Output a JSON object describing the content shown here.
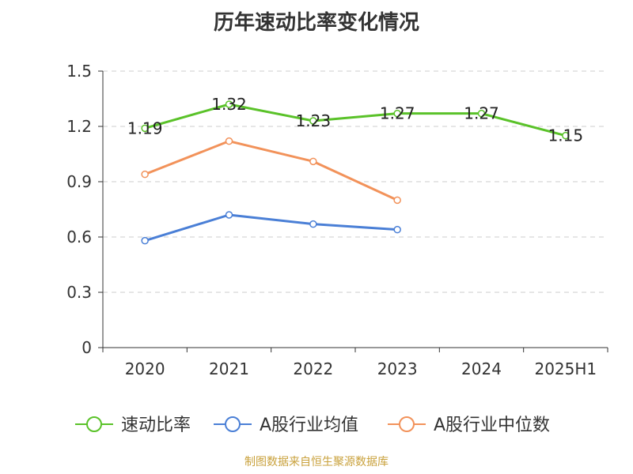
{
  "title": "历年速动比率变化情况",
  "footer": "制图数据来自恒生聚源数据库",
  "chart_data": {
    "type": "line",
    "categories": [
      "2020",
      "2021",
      "2022",
      "2023",
      "2024",
      "2025H1"
    ],
    "ylim": [
      0,
      1.5
    ],
    "yticks": [
      "0",
      "0.3",
      "0.6",
      "0.9",
      "1.2",
      "1.5"
    ],
    "grid": true,
    "legend_position": "bottom",
    "series": [
      {
        "name": "速动比率",
        "color": "#5ac229",
        "values": [
          1.19,
          1.32,
          1.23,
          1.27,
          1.27,
          1.15
        ],
        "labels": [
          "1.19",
          "1.32",
          "1.23",
          "1.27",
          "1.27",
          "1.15"
        ]
      },
      {
        "name": "A股行业均值",
        "color": "#4a7fd6",
        "values": [
          0.58,
          0.72,
          0.67,
          0.64,
          null,
          null
        ]
      },
      {
        "name": "A股行业中位数",
        "color": "#f2925a",
        "values": [
          0.94,
          1.12,
          1.01,
          0.8,
          null,
          null
        ]
      }
    ]
  }
}
